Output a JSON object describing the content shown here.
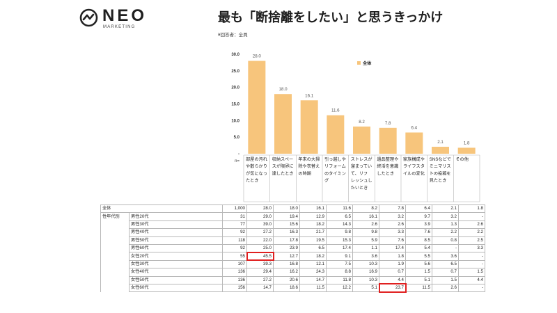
{
  "logo": {
    "name": "NEO",
    "sub": "MARKETING"
  },
  "title": "最も「断捨離をしたい」と思うきっかけ",
  "respondents": "¥回答者：全員",
  "chart_data": {
    "type": "bar",
    "ylim": [
      0,
      30
    ],
    "yticks": [
      "30.0",
      "25.0",
      "20.0",
      "15.0",
      "10.0",
      "5.0",
      "-"
    ],
    "n_label": "n=",
    "legend": "全体",
    "bar_color": "#f7c57c",
    "categories": [
      [
        "部屋の汚れ",
        "や散らかり",
        "が気になっ",
        "たとき"
      ],
      [
        "収納スペー",
        "スが限界に",
        "達したとき"
      ],
      [
        "年末の大掃",
        "除や衣替え",
        "の時期"
      ],
      [
        "引っ越しや",
        "リフォーム",
        "のタイミン",
        "グ"
      ],
      [
        "ストレスが",
        "溜まってい",
        "て、リフ",
        "レッシュし",
        "たいとき"
      ],
      [
        "遺品整理や",
        "終活を意識",
        "したとき"
      ],
      [
        "家族構成や",
        "ライフスタ",
        "イルの変化"
      ],
      [
        "SNSなどで",
        "ミニマリス",
        "トの投稿を",
        "見たとき"
      ],
      [
        "その他"
      ]
    ],
    "values": [
      28.0,
      18.0,
      16.1,
      11.6,
      8.2,
      7.8,
      6.4,
      2.1,
      1.8
    ],
    "labels": [
      "28.0",
      "18.0",
      "16.1",
      "11.6",
      "8.2",
      "7.8",
      "6.4",
      "2.1",
      "1.8"
    ]
  },
  "table": {
    "group_label": "性年代別",
    "rows": [
      {
        "label": "全体",
        "n": "1,000",
        "values": [
          "28.0",
          "18.0",
          "16.1",
          "11.6",
          "8.2",
          "7.8",
          "6.4",
          "2.1",
          "1.8"
        ]
      },
      {
        "label": "男性20代",
        "n": "31",
        "values": [
          "29.0",
          "19.4",
          "12.9",
          "6.5",
          "16.1",
          "3.2",
          "9.7",
          "3.2",
          "-"
        ]
      },
      {
        "label": "男性30代",
        "n": "77",
        "values": [
          "39.0",
          "15.6",
          "18.2",
          "14.3",
          "2.6",
          "2.6",
          "3.9",
          "1.3",
          "2.6"
        ]
      },
      {
        "label": "男性40代",
        "n": "92",
        "values": [
          "27.2",
          "16.3",
          "21.7",
          "9.8",
          "9.8",
          "3.3",
          "7.6",
          "2.2",
          "2.2"
        ]
      },
      {
        "label": "男性50代",
        "n": "118",
        "values": [
          "22.0",
          "17.8",
          "19.5",
          "15.3",
          "5.9",
          "7.6",
          "8.5",
          "0.8",
          "2.5"
        ]
      },
      {
        "label": "男性60代",
        "n": "92",
        "values": [
          "25.0",
          "23.9",
          "6.5",
          "17.4",
          "1.1",
          "17.4",
          "5.4",
          "-",
          "3.3"
        ]
      },
      {
        "label": "女性20代",
        "n": "55",
        "values": [
          "45.5",
          "12.7",
          "18.2",
          "9.1",
          "3.6",
          "1.8",
          "5.5",
          "3.6",
          "-"
        ]
      },
      {
        "label": "女性30代",
        "n": "107",
        "values": [
          "39.3",
          "16.8",
          "12.1",
          "7.5",
          "10.3",
          "1.9",
          "5.6",
          "6.5",
          "-"
        ]
      },
      {
        "label": "女性40代",
        "n": "136",
        "values": [
          "29.4",
          "16.2",
          "24.3",
          "8.8",
          "16.9",
          "0.7",
          "1.5",
          "0.7",
          "1.5"
        ]
      },
      {
        "label": "女性50代",
        "n": "136",
        "values": [
          "27.2",
          "20.6",
          "14.7",
          "11.8",
          "10.3",
          "4.4",
          "5.1",
          "1.5",
          "4.4"
        ]
      },
      {
        "label": "女性60代",
        "n": "156",
        "values": [
          "14.7",
          "18.6",
          "11.5",
          "12.2",
          "5.1",
          "23.7",
          "11.5",
          "2.6",
          "-"
        ]
      }
    ],
    "highlights": [
      [
        6,
        0
      ],
      [
        10,
        5
      ]
    ]
  }
}
